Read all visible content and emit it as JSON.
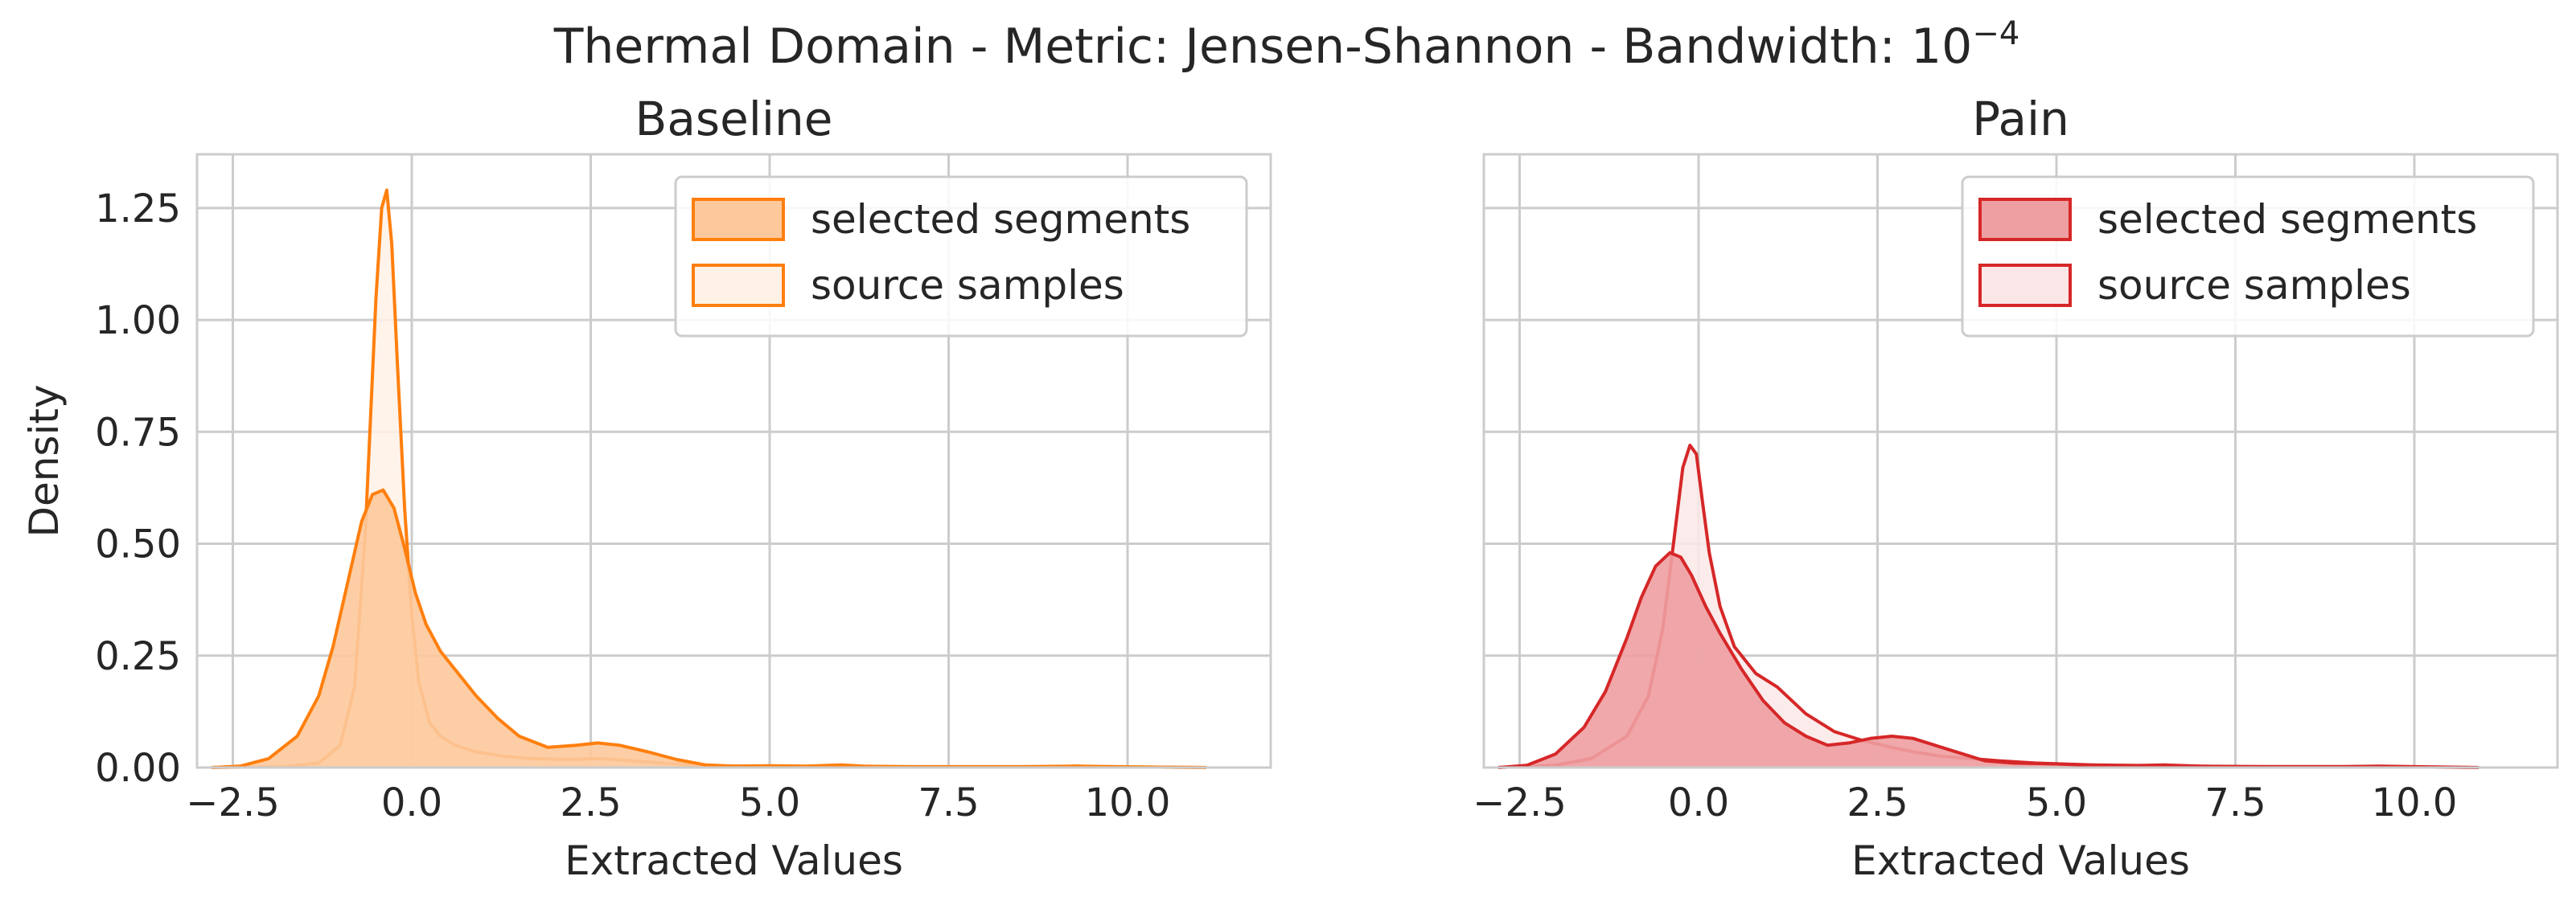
{
  "figure": {
    "title_main": "Thermal Domain - Metric: Jensen-Shannon - Bandwidth: 10",
    "title_exp": "−4"
  },
  "chart_data": [
    {
      "type": "area",
      "title": "Baseline",
      "xlabel": "Extracted Values",
      "ylabel": "Density",
      "xlim": [
        -3.0,
        12.0
      ],
      "ylim": [
        0.0,
        1.37
      ],
      "xticks": [
        -2.5,
        0.0,
        2.5,
        5.0,
        7.5,
        10.0
      ],
      "xtick_labels": [
        "−2.5",
        "0.0",
        "2.5",
        "5.0",
        "7.5",
        "10.0"
      ],
      "yticks": [
        0.0,
        0.25,
        0.5,
        0.75,
        1.0,
        1.25
      ],
      "ytick_labels": [
        "0.00",
        "0.25",
        "0.50",
        "0.75",
        "1.00",
        "1.25"
      ],
      "grid": true,
      "legend_position": "upper-right",
      "colors": {
        "line": "#ff7f0e",
        "selected_fill": "#fdc99c",
        "source_fill": "#fff1e6"
      },
      "series": [
        {
          "name": "selected segments",
          "x": [
            -2.8,
            -2.4,
            -2.0,
            -1.6,
            -1.3,
            -1.1,
            -0.9,
            -0.7,
            -0.55,
            -0.4,
            -0.25,
            -0.1,
            0.05,
            0.2,
            0.4,
            0.6,
            0.9,
            1.2,
            1.5,
            1.9,
            2.3,
            2.6,
            2.9,
            3.3,
            3.7,
            4.1,
            4.5,
            5.0,
            5.5,
            6.0,
            6.3,
            6.7,
            7.2,
            8.5,
            9.3,
            9.8,
            10.3,
            11.1
          ],
          "y": [
            0.0,
            0.003,
            0.02,
            0.07,
            0.16,
            0.27,
            0.41,
            0.55,
            0.61,
            0.62,
            0.58,
            0.49,
            0.39,
            0.32,
            0.26,
            0.22,
            0.16,
            0.11,
            0.07,
            0.045,
            0.05,
            0.055,
            0.05,
            0.035,
            0.018,
            0.006,
            0.003,
            0.004,
            0.003,
            0.006,
            0.003,
            0.002,
            0.001,
            0.001,
            0.003,
            0.001,
            0.001,
            0.0
          ]
        },
        {
          "name": "source samples",
          "x": [
            -2.8,
            -1.8,
            -1.3,
            -1.0,
            -0.8,
            -0.65,
            -0.5,
            -0.42,
            -0.35,
            -0.28,
            -0.2,
            -0.1,
            0.0,
            0.1,
            0.25,
            0.4,
            0.6,
            0.9,
            1.3,
            1.7,
            2.2,
            2.6,
            3.0,
            3.5,
            4.0,
            4.5,
            5.2,
            6.0,
            7.0,
            8.5,
            9.3,
            10.3,
            11.1
          ],
          "y": [
            0.0,
            0.002,
            0.01,
            0.05,
            0.18,
            0.52,
            1.05,
            1.25,
            1.29,
            1.17,
            0.9,
            0.58,
            0.34,
            0.19,
            0.1,
            0.07,
            0.05,
            0.035,
            0.025,
            0.02,
            0.018,
            0.02,
            0.016,
            0.01,
            0.005,
            0.003,
            0.002,
            0.003,
            0.002,
            0.002,
            0.003,
            0.001,
            0.0
          ]
        }
      ]
    },
    {
      "type": "area",
      "title": "Pain",
      "xlabel": "Extracted Values",
      "ylabel": "",
      "xlim": [
        -3.0,
        12.0
      ],
      "ylim": [
        0.0,
        1.37
      ],
      "xticks": [
        -2.5,
        0.0,
        2.5,
        5.0,
        7.5,
        10.0
      ],
      "xtick_labels": [
        "−2.5",
        "0.0",
        "2.5",
        "5.0",
        "7.5",
        "10.0"
      ],
      "yticks": [
        0.0,
        0.25,
        0.5,
        0.75,
        1.0,
        1.25
      ],
      "ytick_labels": [],
      "grid": true,
      "legend_position": "upper-right",
      "colors": {
        "line": "#d62728",
        "selected_fill": "#ee9fa1",
        "source_fill": "#fbe7e8"
      },
      "series": [
        {
          "name": "selected segments",
          "x": [
            -2.8,
            -2.4,
            -2.0,
            -1.6,
            -1.3,
            -1.0,
            -0.8,
            -0.6,
            -0.4,
            -0.25,
            -0.1,
            0.1,
            0.3,
            0.6,
            0.9,
            1.2,
            1.5,
            1.8,
            2.1,
            2.4,
            2.7,
            3.0,
            3.3,
            3.7,
            4.0,
            4.4,
            5.0,
            5.5,
            6.0,
            6.5,
            7.0,
            8.0,
            9.0,
            9.5,
            10.0,
            10.9
          ],
          "y": [
            0.0,
            0.005,
            0.03,
            0.09,
            0.17,
            0.29,
            0.38,
            0.45,
            0.48,
            0.47,
            0.43,
            0.36,
            0.3,
            0.22,
            0.15,
            0.1,
            0.07,
            0.05,
            0.055,
            0.065,
            0.07,
            0.065,
            0.05,
            0.03,
            0.015,
            0.01,
            0.008,
            0.005,
            0.004,
            0.006,
            0.003,
            0.002,
            0.002,
            0.003,
            0.002,
            0.0
          ]
        },
        {
          "name": "source samples",
          "x": [
            -2.8,
            -2.0,
            -1.5,
            -1.0,
            -0.7,
            -0.5,
            -0.35,
            -0.22,
            -0.12,
            -0.03,
            0.05,
            0.15,
            0.3,
            0.5,
            0.8,
            1.1,
            1.5,
            1.9,
            2.3,
            2.7,
            3.0,
            3.4,
            3.8,
            4.2,
            4.7,
            5.5,
            6.5,
            7.5,
            8.5,
            9.5,
            10.9
          ],
          "y": [
            0.0,
            0.005,
            0.02,
            0.07,
            0.16,
            0.31,
            0.5,
            0.67,
            0.72,
            0.7,
            0.6,
            0.48,
            0.36,
            0.27,
            0.21,
            0.18,
            0.12,
            0.08,
            0.06,
            0.045,
            0.035,
            0.025,
            0.02,
            0.015,
            0.01,
            0.006,
            0.004,
            0.002,
            0.002,
            0.002,
            0.0
          ]
        }
      ]
    }
  ]
}
